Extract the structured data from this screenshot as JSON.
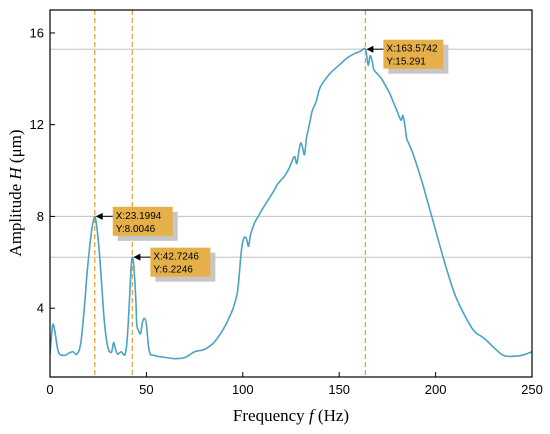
{
  "chart_data": {
    "type": "line",
    "xlabel": "Frequency f (Hz)",
    "xlabel_parts": {
      "prefix": "Frequency ",
      "var": "f",
      "suffix": " (Hz)"
    },
    "ylabel": "Amplitude H (μm)",
    "ylabel_parts": {
      "prefix": "Amplitude ",
      "var": "H",
      "suffix": " (μm)"
    },
    "xlim": [
      0,
      250
    ],
    "ylim": [
      1,
      17
    ],
    "xticks": [
      0,
      50,
      100,
      150,
      200,
      250
    ],
    "yticks": [
      4,
      8,
      12,
      16
    ],
    "line_color": "#4aa3c6",
    "marker_line_color": "#e8a23a",
    "annotation_color": "#e5b04a",
    "series": [
      {
        "x": [
          0,
          0.8,
          1.5,
          2.5,
          4,
          5,
          6,
          8,
          10,
          12,
          14,
          16,
          18,
          19,
          20,
          21,
          22,
          23.2,
          24,
          25,
          26,
          27,
          28,
          29,
          30,
          31,
          32,
          33,
          34,
          35,
          36,
          37,
          38,
          39,
          40,
          41,
          42,
          42.7,
          43.5,
          44.5,
          45,
          46,
          47,
          48,
          49,
          50,
          51,
          52,
          54,
          56,
          60,
          65,
          70,
          75,
          80,
          85,
          90,
          93,
          95,
          97,
          98,
          99,
          100,
          101,
          102,
          103,
          104,
          106,
          108,
          110,
          113,
          116,
          118,
          120,
          122,
          124,
          126,
          127,
          128,
          129,
          130,
          131,
          132,
          133,
          134,
          135,
          136,
          138,
          140,
          143,
          146,
          150,
          154,
          158,
          161,
          163.6,
          165,
          166,
          167,
          168,
          170,
          172,
          174,
          176,
          178,
          180,
          182,
          183,
          184,
          185,
          186,
          187,
          188,
          190,
          193,
          196,
          200,
          205,
          210,
          215,
          220,
          225,
          230,
          235,
          240,
          245,
          250
        ],
        "y": [
          2.0,
          2.8,
          3.3,
          3.0,
          2.2,
          2.0,
          1.95,
          1.95,
          2.05,
          2.1,
          2.0,
          2.5,
          4.2,
          5.3,
          6.2,
          7.0,
          7.6,
          8.0,
          7.7,
          7.0,
          6.0,
          4.8,
          3.6,
          2.8,
          2.3,
          2.1,
          2.1,
          2.5,
          2.2,
          2.0,
          2.05,
          2.1,
          2.0,
          2.0,
          2.6,
          4.0,
          5.7,
          6.22,
          5.8,
          4.4,
          3.3,
          3.0,
          2.9,
          3.4,
          3.55,
          3.3,
          2.4,
          2.0,
          1.95,
          1.9,
          1.85,
          1.8,
          1.85,
          2.1,
          2.2,
          2.5,
          3.1,
          3.6,
          4.0,
          4.6,
          5.3,
          6.3,
          6.9,
          7.1,
          7.0,
          6.7,
          7.2,
          7.7,
          8.0,
          8.3,
          8.7,
          9.1,
          9.4,
          9.6,
          9.8,
          10.1,
          10.5,
          10.6,
          10.3,
          10.8,
          11.2,
          11.0,
          10.7,
          11.4,
          11.8,
          12.2,
          12.6,
          13.0,
          13.6,
          14.0,
          14.3,
          14.6,
          14.9,
          15.1,
          15.2,
          15.29,
          14.6,
          15.0,
          14.8,
          14.4,
          14.2,
          14.0,
          13.7,
          13.4,
          13.0,
          12.6,
          12.2,
          12.4,
          12.0,
          11.4,
          11.2,
          11.0,
          10.8,
          10.3,
          9.5,
          8.6,
          7.4,
          5.9,
          4.6,
          3.7,
          3.0,
          2.7,
          2.3,
          1.95,
          1.9,
          1.95,
          2.1
        ]
      }
    ],
    "vlines": [
      23.2,
      42.7,
      163.6
    ],
    "hlines": [
      8.0046,
      6.2246,
      15.291
    ],
    "annotations": [
      {
        "x": 23.1994,
        "y": 8.0046,
        "line1": "X:23.1994",
        "line2": "Y:8.0046"
      },
      {
        "x": 42.7246,
        "y": 6.2246,
        "line1": "X:42.7246",
        "line2": "Y:6.2246"
      },
      {
        "x": 163.5742,
        "y": 15.291,
        "line1": "X:163.5742",
        "line2": "Y:15.291"
      }
    ]
  }
}
